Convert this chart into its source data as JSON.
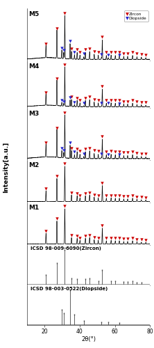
{
  "xlabel": "2θ(°)",
  "ylabel": "Intensity[a.u.]",
  "xlim": [
    10,
    80
  ],
  "zircon_color": "#cc0000",
  "diopside_color": "#2222cc",
  "ref_color": "#444444",
  "panel_labels": [
    "M5",
    "M4",
    "M3",
    "M2",
    "M1"
  ],
  "ref_labels": [
    "ICSD 98-009-6090(Zircon)",
    "ICSD 98-003-0522(Diopside)"
  ],
  "z_peaks": [
    20.8,
    27.0,
    31.5,
    35.3,
    38.5,
    40.1,
    43.2,
    45.6,
    48.2,
    50.5,
    52.8,
    55.1,
    57.8,
    60.2,
    62.5,
    65.0,
    67.2,
    70.0,
    72.5,
    75.0,
    77.5
  ],
  "z_heights": [
    0.3,
    0.65,
    1.0,
    0.18,
    0.16,
    0.1,
    0.16,
    0.18,
    0.12,
    0.1,
    0.45,
    0.09,
    0.1,
    0.09,
    0.09,
    0.07,
    0.07,
    0.09,
    0.06,
    0.05,
    0.04
  ],
  "d_peaks": [
    29.8,
    30.9,
    34.5,
    37.0,
    42.3,
    52.3,
    56.2,
    62.6
  ],
  "d_heights": [
    0.3,
    0.22,
    0.55,
    0.16,
    0.09,
    0.07,
    0.06,
    0.05
  ],
  "zref_peaks": [
    20.8,
    27.0,
    31.5,
    35.3,
    38.5,
    43.2,
    45.6,
    50.5,
    52.8,
    57.8,
    60.2,
    65.0,
    67.2,
    70.0,
    72.5,
    75.0
  ],
  "zref_heights": [
    0.28,
    0.62,
    1.0,
    0.18,
    0.14,
    0.15,
    0.17,
    0.09,
    0.42,
    0.09,
    0.09,
    0.06,
    0.06,
    0.08,
    0.05,
    0.04
  ],
  "dref_peaks": [
    29.8,
    30.9,
    34.5,
    37.0,
    42.3,
    52.3,
    56.2,
    62.6
  ],
  "dref_heights": [
    0.42,
    0.33,
    1.0,
    0.28,
    0.11,
    0.07,
    0.06,
    0.05
  ],
  "M5_dscale": 0.65,
  "M4_dscale": 0.3,
  "M3_dscale": 0.55,
  "M2_dscale": 0.0,
  "M1_dscale": 0.0,
  "M5_hump": true,
  "M4_hump": true,
  "M3_hump": true,
  "M2_hump": false,
  "M1_hump": false
}
